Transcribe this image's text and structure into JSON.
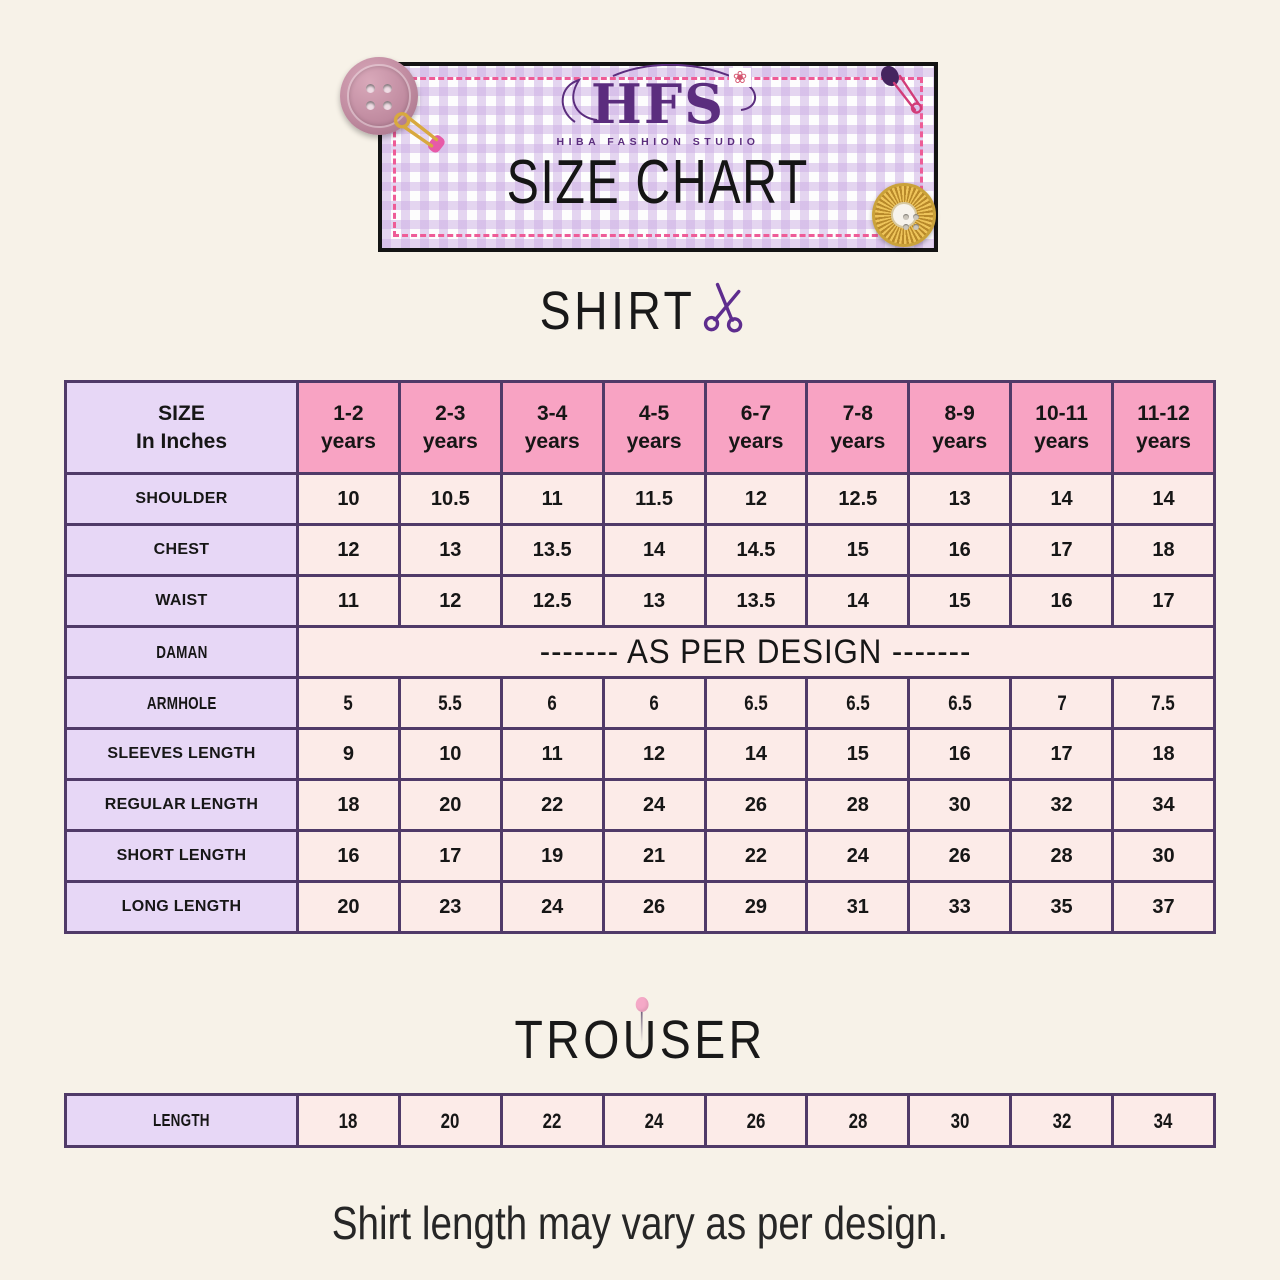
{
  "banner": {
    "logo_text": "HFS",
    "logo_subtext": "HIBA FASHION STUDIO",
    "title": "SIZE CHART",
    "flower_glyph": "❀"
  },
  "shirt_section": {
    "title": "SHIRT"
  },
  "trouser_section": {
    "parts": [
      "TRO",
      "U",
      "SER"
    ]
  },
  "footnote": "Shirt length may vary as per design.",
  "colors": {
    "page_bg": "#f7f2e8",
    "border_purple": "#503a68",
    "header_pink": "#f8a3c3",
    "label_purple": "#e7d7f6",
    "cell_pink": "#fcebe8",
    "dashed_pink": "#ee5c97",
    "logo_purple": "#5b2d7e",
    "scissors_purple": "#5e2d8e",
    "pin_pink": "#f5a9c7",
    "text_dark": "#1c1c1c"
  },
  "icons": [
    "scissors-icon",
    "pin-icon",
    "mauve-button-icon",
    "gold-button-icon",
    "gold-safety-pin-icon",
    "purple-safety-pin-icon"
  ],
  "shirt_table": {
    "corner_line1": "SIZE",
    "corner_line2": "In Inches",
    "columns": [
      {
        "range": "1-2",
        "unit": "years"
      },
      {
        "range": "2-3",
        "unit": "years"
      },
      {
        "range": "3-4",
        "unit": "years"
      },
      {
        "range": "4-5",
        "unit": "years"
      },
      {
        "range": "6-7",
        "unit": "years"
      },
      {
        "range": "7-8",
        "unit": "years"
      },
      {
        "range": "8-9",
        "unit": "years"
      },
      {
        "range": "10-11",
        "unit": "years"
      },
      {
        "range": "11-12",
        "unit": "years"
      }
    ],
    "rows": [
      {
        "label": "SHOULDER",
        "values": [
          "10",
          "10.5",
          "11",
          "11.5",
          "12",
          "12.5",
          "13",
          "14",
          "14"
        ]
      },
      {
        "label": "CHEST",
        "values": [
          "12",
          "13",
          "13.5",
          "14",
          "14.5",
          "15",
          "16",
          "17",
          "18"
        ]
      },
      {
        "label": "WAIST",
        "values": [
          "11",
          "12",
          "12.5",
          "13",
          "13.5",
          "14",
          "15",
          "16",
          "17"
        ]
      },
      {
        "label": "DAMAN",
        "merged": "------- AS PER DESIGN -------"
      },
      {
        "label": "ARMHOLE",
        "values": [
          "5",
          "5.5",
          "6",
          "6",
          "6.5",
          "6.5",
          "6.5",
          "7",
          "7.5"
        ]
      },
      {
        "label": "SLEEVES LENGTH",
        "values": [
          "9",
          "10",
          "11",
          "12",
          "14",
          "15",
          "16",
          "17",
          "18"
        ]
      },
      {
        "label": "REGULAR LENGTH",
        "values": [
          "18",
          "20",
          "22",
          "24",
          "26",
          "28",
          "30",
          "32",
          "34"
        ]
      },
      {
        "label": "SHORT LENGTH",
        "values": [
          "16",
          "17",
          "19",
          "21",
          "22",
          "24",
          "26",
          "28",
          "30"
        ]
      },
      {
        "label": "LONG LENGTH",
        "values": [
          "20",
          "23",
          "24",
          "26",
          "29",
          "31",
          "33",
          "35",
          "37"
        ]
      }
    ]
  },
  "trouser_table": {
    "rows": [
      {
        "label": "LENGTH",
        "values": [
          "18",
          "20",
          "22",
          "24",
          "26",
          "28",
          "30",
          "32",
          "34"
        ]
      }
    ]
  }
}
